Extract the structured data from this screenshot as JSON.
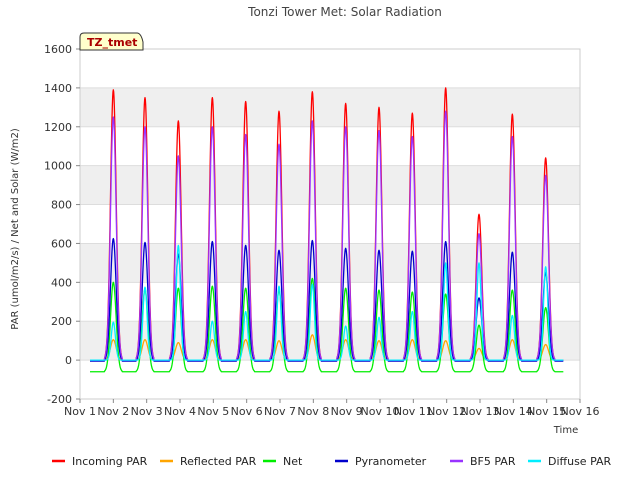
{
  "chart_data": {
    "type": "line",
    "title": "Tonzi Tower Met: Solar Radiation",
    "xlabel": "Time",
    "ylabel": "PAR (umol/m2/s) / Net and Solar (W/m2)",
    "tag": "TZ_tmet",
    "ylim": [
      -200,
      1600
    ],
    "xlim": [
      1,
      16
    ],
    "yticks": [
      -200,
      0,
      200,
      400,
      600,
      800,
      1000,
      1200,
      1400,
      1600
    ],
    "xticks": [
      {
        "value": 1,
        "label": "Nov 1"
      },
      {
        "value": 2,
        "label": "Nov 2"
      },
      {
        "value": 3,
        "label": "Nov 3"
      },
      {
        "value": 4,
        "label": "Nov 4"
      },
      {
        "value": 5,
        "label": "Nov 5"
      },
      {
        "value": 6,
        "label": "Nov 6"
      },
      {
        "value": 7,
        "label": "Nov 7"
      },
      {
        "value": 8,
        "label": "Nov 8"
      },
      {
        "value": 9,
        "label": "Nov 9"
      },
      {
        "value": 10,
        "label": "Nov 10"
      },
      {
        "value": 11,
        "label": "Nov 11"
      },
      {
        "value": 12,
        "label": "Nov 12"
      },
      {
        "value": 13,
        "label": "Nov 13"
      },
      {
        "value": 14,
        "label": "Nov 14"
      },
      {
        "value": 15,
        "label": "Nov 15"
      },
      {
        "value": 16,
        "label": "Nov 16"
      }
    ],
    "grid": "horizontal bands",
    "legend_position": "bottom",
    "day_centers": [
      2.0,
      2.95,
      3.95,
      4.97,
      5.97,
      6.97,
      7.97,
      8.97,
      9.97,
      10.97,
      11.97,
      12.97,
      13.97,
      14.97
    ],
    "series": [
      {
        "name": "Incoming PAR",
        "color": "#ff0000",
        "night": 0,
        "peaks": [
          1390,
          1350,
          1230,
          1350,
          1330,
          1280,
          1380,
          1320,
          1300,
          1270,
          1400,
          750,
          1265,
          1040
        ]
      },
      {
        "name": "Reflected PAR",
        "color": "#ffa500",
        "night": 0,
        "peaks": [
          105,
          105,
          90,
          105,
          105,
          100,
          130,
          105,
          100,
          105,
          100,
          60,
          105,
          80
        ]
      },
      {
        "name": "Net",
        "color": "#00ee00",
        "night": -60,
        "peaks": [
          400,
          365,
          370,
          380,
          370,
          360,
          420,
          370,
          360,
          350,
          340,
          180,
          360,
          270
        ]
      },
      {
        "name": "Pyranometer",
        "color": "#0000cc",
        "night": -5,
        "peaks": [
          625,
          605,
          545,
          610,
          590,
          565,
          615,
          575,
          565,
          560,
          610,
          320,
          555,
          450
        ]
      },
      {
        "name": "BF5 PAR",
        "color": "#9933ff",
        "night": 0,
        "peaks": [
          1250,
          1200,
          1050,
          1200,
          1160,
          1110,
          1230,
          1200,
          1180,
          1150,
          1280,
          650,
          1150,
          950
        ]
      },
      {
        "name": "Diffuse PAR",
        "color": "#00eeff",
        "night": 0,
        "peaks": [
          195,
          375,
          590,
          200,
          250,
          380,
          390,
          175,
          220,
          250,
          500,
          500,
          230,
          480
        ]
      }
    ]
  }
}
